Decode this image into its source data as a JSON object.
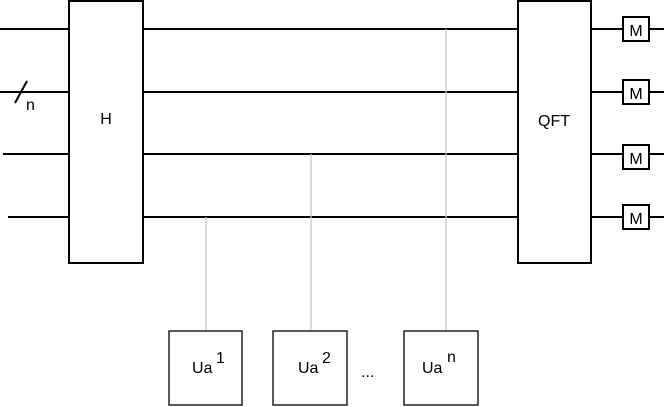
{
  "diagram": {
    "register_label": "n",
    "gates": {
      "hadamard": "H",
      "qft": "QFT",
      "measure": "M"
    },
    "unitaries": [
      {
        "base": "Ua",
        "exponent": "1"
      },
      {
        "base": "Ua",
        "exponent": "2"
      },
      {
        "base": "Ua",
        "exponent": "n"
      }
    ],
    "ellipsis": "..."
  }
}
